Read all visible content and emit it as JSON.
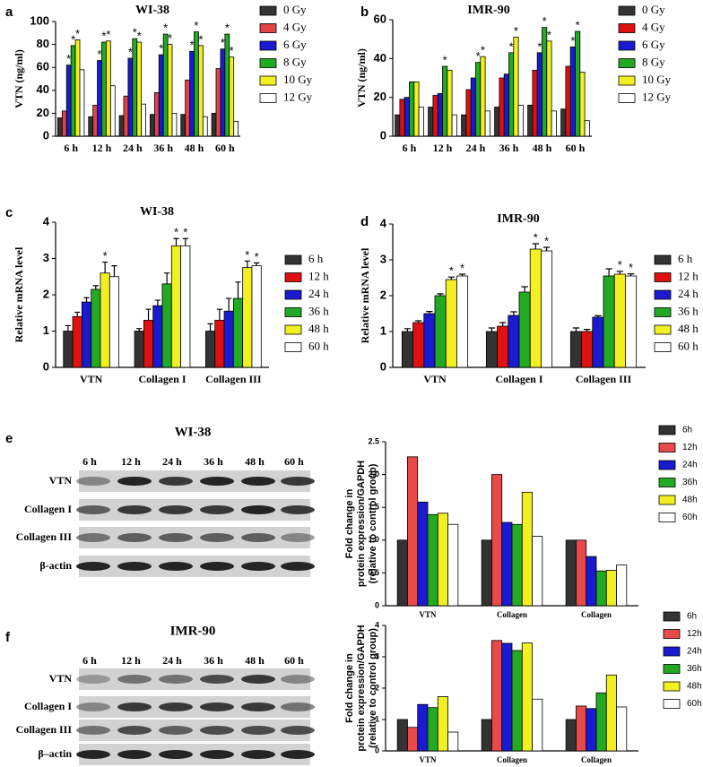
{
  "chart_data": [
    {
      "type": "bar",
      "panel": "a",
      "title": "WI-38",
      "ylabel": [
        "VTN (ng/ml)"
      ],
      "categories": [
        "6 h",
        "12 h",
        "24 h",
        "36 h",
        "48 h",
        "60 h"
      ],
      "ylim": [
        0,
        100
      ],
      "yticks": [
        0,
        20,
        40,
        60,
        80,
        100
      ],
      "series": [
        {
          "name": "0 Gy",
          "color": "#333333",
          "values": [
            16,
            17,
            18,
            19,
            19,
            20
          ]
        },
        {
          "name": "4 Gy",
          "color": "#e04444",
          "values": [
            22,
            27,
            35,
            38,
            49,
            59
          ]
        },
        {
          "name": "6 Gy",
          "color": "#1a1ad0",
          "values": [
            62,
            66,
            68,
            71,
            74,
            76
          ],
          "significance": [
            "*",
            "*",
            "*",
            "*",
            "*",
            "*"
          ]
        },
        {
          "name": "8 Gy",
          "color": "#22aa22",
          "values": [
            79,
            82,
            85,
            89,
            91,
            89
          ],
          "significance": [
            "*",
            "*",
            "*",
            "*",
            "*",
            "*"
          ]
        },
        {
          "name": "10 Gy",
          "color": "#f2f020",
          "values": [
            84,
            83,
            82,
            80,
            79,
            69
          ],
          "significance": [
            "*",
            "*",
            "*",
            "*",
            "*",
            "*"
          ]
        },
        {
          "name": "12 Gy",
          "color": "#ffffff",
          "values": [
            58,
            44,
            28,
            20,
            17,
            13
          ]
        }
      ]
    },
    {
      "type": "bar",
      "panel": "b",
      "title": "IMR-90",
      "ylabel": [
        "VTN (ng/ml)"
      ],
      "categories": [
        "6 h",
        "12 h",
        "24 h",
        "36 h",
        "48 h",
        "60 h"
      ],
      "ylim": [
        0,
        60
      ],
      "yticks": [
        0,
        20,
        40,
        60
      ],
      "series": [
        {
          "name": "0 Gy",
          "color": "#333333",
          "values": [
            11,
            15,
            11,
            15,
            16,
            14
          ]
        },
        {
          "name": "4 Gy",
          "color": "#e01010",
          "values": [
            19,
            21,
            24,
            30,
            34,
            36
          ]
        },
        {
          "name": "6 Gy",
          "color": "#1a1ad0",
          "values": [
            20,
            22,
            30,
            32,
            43,
            46
          ],
          "significance": [
            null,
            null,
            null,
            null,
            "*",
            "*"
          ]
        },
        {
          "name": "8 Gy",
          "color": "#22aa22",
          "values": [
            28,
            36,
            38,
            43,
            56,
            54
          ],
          "significance": [
            null,
            "*",
            "*",
            "*",
            "*",
            "*"
          ]
        },
        {
          "name": "10 Gy",
          "color": "#f2f020",
          "values": [
            28,
            34,
            41,
            51,
            49,
            33
          ],
          "significance": [
            null,
            null,
            "*",
            "*",
            "*",
            null
          ]
        },
        {
          "name": "12 Gy",
          "color": "#ffffff",
          "values": [
            15,
            11,
            13,
            16,
            13,
            8
          ]
        }
      ]
    },
    {
      "type": "bar",
      "panel": "c",
      "title": "WI-38",
      "ylabel": [
        "Relative  mRNA level"
      ],
      "categories": [
        "VTN",
        "Collagen I",
        "Collagen III"
      ],
      "ylim": [
        0,
        4
      ],
      "yticks": [
        0,
        1,
        2,
        3,
        4
      ],
      "series": [
        {
          "name": "6 h",
          "color": "#333333",
          "values": [
            1.0,
            1.0,
            1.0
          ],
          "errors": [
            0.15,
            0.07,
            0.2
          ]
        },
        {
          "name": "12 h",
          "color": "#e01010",
          "values": [
            1.4,
            1.3,
            1.3
          ],
          "errors": [
            0.12,
            0.3,
            0.3
          ]
        },
        {
          "name": "24 h",
          "color": "#1a1ad0",
          "values": [
            1.8,
            1.7,
            1.55
          ],
          "errors": [
            0.12,
            0.15,
            0.35
          ]
        },
        {
          "name": "36 h",
          "color": "#22aa22",
          "values": [
            2.15,
            2.3,
            1.9
          ],
          "errors": [
            0.1,
            0.3,
            0.45
          ]
        },
        {
          "name": "48 h",
          "color": "#f2f020",
          "values": [
            2.6,
            3.35,
            2.75
          ],
          "errors": [
            0.3,
            0.2,
            0.18
          ],
          "significance": [
            "*",
            "*",
            "*"
          ]
        },
        {
          "name": "60 h",
          "color": "#ffffff",
          "values": [
            2.5,
            3.35,
            2.8
          ],
          "errors": [
            0.3,
            0.2,
            0.08
          ],
          "significance": [
            null,
            "*",
            "*"
          ]
        }
      ]
    },
    {
      "type": "bar",
      "panel": "d",
      "title": "IMR-90",
      "ylabel": [
        "Relative  mRNA level"
      ],
      "categories": [
        "VTN",
        "Collagen I",
        "Collagen III"
      ],
      "ylim": [
        0,
        4
      ],
      "yticks": [
        0,
        1,
        2,
        3,
        4
      ],
      "series": [
        {
          "name": "6 h",
          "color": "#333333",
          "values": [
            1.0,
            1.0,
            1.0
          ],
          "errors": [
            0.08,
            0.1,
            0.1
          ]
        },
        {
          "name": "12 h",
          "color": "#e01010",
          "values": [
            1.25,
            1.15,
            1.0
          ],
          "errors": [
            0.05,
            0.1,
            0.06
          ]
        },
        {
          "name": "24 h",
          "color": "#1a1ad0",
          "values": [
            1.5,
            1.45,
            1.4
          ],
          "errors": [
            0.06,
            0.1,
            0.04
          ]
        },
        {
          "name": "36 h",
          "color": "#22aa22",
          "values": [
            2.0,
            2.1,
            2.55
          ],
          "errors": [
            0.05,
            0.15,
            0.2
          ]
        },
        {
          "name": "48 h",
          "color": "#f2f020",
          "values": [
            2.45,
            3.3,
            2.6
          ],
          "errors": [
            0.07,
            0.15,
            0.08
          ],
          "significance": [
            "*",
            "*",
            "*"
          ]
        },
        {
          "name": "60 h",
          "color": "#ffffff",
          "values": [
            2.55,
            3.25,
            2.55
          ],
          "errors": [
            0.05,
            0.1,
            0.06
          ],
          "significance": [
            "*",
            "*",
            "*"
          ]
        }
      ]
    },
    {
      "type": "bar",
      "ylabel": [
        "Fold change in",
        "protein expression/GAPDH",
        "(relative to control group)"
      ],
      "categories": [
        "VTN",
        "Collagen",
        "Collagen"
      ],
      "ylim": [
        0,
        2.5
      ],
      "yticks": [
        0,
        0.5,
        {
          "value": 1,
          "label": "1.0"
        },
        1.5,
        {
          "value": 2,
          "label": "2.0"
        },
        2.5
      ],
      "series": [
        {
          "name": "6h",
          "color": "#333333",
          "values": [
            1,
            1,
            1
          ]
        },
        {
          "name": "12h",
          "color": "#e84a4a",
          "values": [
            2.27,
            2.0,
            1.0
          ]
        },
        {
          "name": "24h",
          "color": "#1a1ad0",
          "values": [
            1.58,
            1.27,
            0.75
          ]
        },
        {
          "name": "36h",
          "color": "#22aa22",
          "values": [
            1.39,
            1.24,
            0.53
          ]
        },
        {
          "name": "48h",
          "color": "#f2f020",
          "values": [
            1.41,
            1.73,
            0.54
          ]
        },
        {
          "name": "60h",
          "color": "#ffffff",
          "values": [
            1.24,
            1.06,
            0.62
          ]
        }
      ]
    },
    {
      "type": "bar",
      "ylabel": [
        "Fold change in",
        "protein expression/GAPDH",
        "(relative to control group)"
      ],
      "categories": [
        "VTN",
        "Collagen",
        "Collagen"
      ],
      "ylim": [
        0,
        4
      ],
      "yticks": [
        0,
        1,
        2,
        3,
        4
      ],
      "series": [
        {
          "name": "6h",
          "color": "#333333",
          "values": [
            1,
            1,
            1
          ]
        },
        {
          "name": "12h",
          "color": "#e84a4a",
          "values": [
            0.75,
            3.52,
            1.43
          ]
        },
        {
          "name": "24h",
          "color": "#1a1ad0",
          "values": [
            1.48,
            3.43,
            1.35
          ]
        },
        {
          "name": "36h",
          "color": "#22aa22",
          "values": [
            1.38,
            3.2,
            1.85
          ]
        },
        {
          "name": "48h",
          "color": "#f2f020",
          "values": [
            1.73,
            3.44,
            2.42
          ]
        },
        {
          "name": "60h",
          "color": "#ffffff",
          "values": [
            0.6,
            1.65,
            1.4
          ]
        }
      ]
    }
  ],
  "blots": [
    {
      "panel": "e",
      "title": "WI-38",
      "lanes": [
        "6 h",
        "12 h",
        "24 h",
        "36 h",
        "48 h",
        "60 h"
      ],
      "rows": [
        "VTN",
        "Collagen I",
        "Collagen III",
        "β-actin"
      ]
    },
    {
      "panel": "f",
      "title": "IMR-90",
      "lanes": [
        "6 h",
        "12 h",
        "24 h",
        "36 h",
        "48 h",
        "60 h"
      ],
      "rows": [
        "VTN",
        "Collagen I",
        "Collagen III",
        "β–actin"
      ]
    }
  ]
}
